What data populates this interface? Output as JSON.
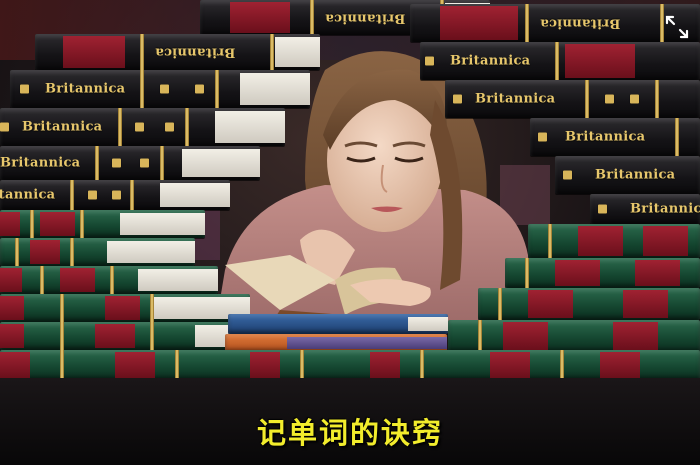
{
  "image": {
    "subtitle": "记单词的诀窍",
    "book_spine_text": "Britannica",
    "expand_icon": "expand-icon",
    "colors": {
      "subtitle": "#f2ec2c",
      "gold": "#e7c76c",
      "black_spine": "#141316",
      "green_spine": "#14452f",
      "red_panel": "#8a1626"
    }
  }
}
